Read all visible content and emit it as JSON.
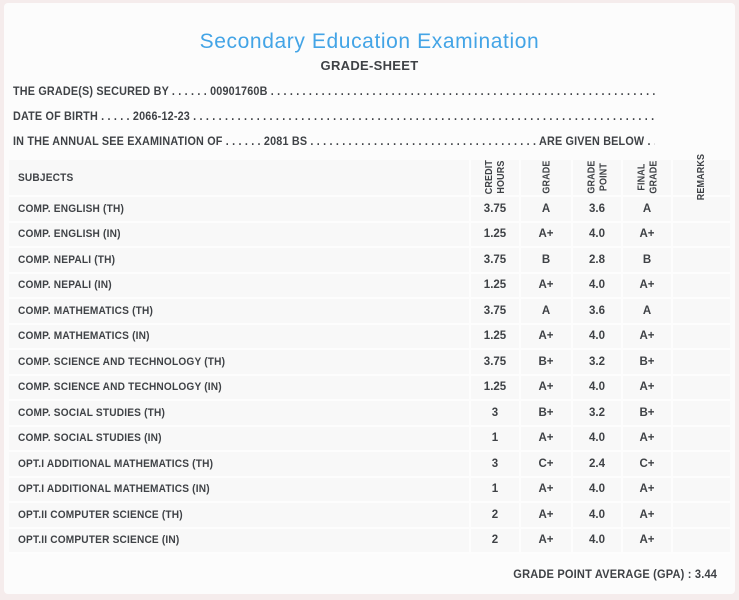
{
  "header": {
    "title": "Secondary Education Examination",
    "subtitle": "GRADE-SHEET"
  },
  "info": {
    "lines": [
      "THE GRADE(S) SECURED BY . . . . . . 00901760B . . . . . . . . . . . . . . . . . . . . . . . . . . . . . . . . . . . . . . . . . . . . . . . . . . . . . . . . . . . . . . . . . . . . . . . .",
      "DATE OF BIRTH . . . . . 2066-12-23 . . . . . . . . . . . . . . . . . . . . . . . . . . . . . . . . . . . . . . . . . . . . . . . . . . . . . . . . . . . . . . . . . . . . . . . . . . . . . . . .",
      "IN THE ANNUAL SEE EXAMINATION OF . . . . . . 2081 BS . . . . . . . . . . . . . . . . . . . . . . . . . . . . . . . . . . . . ARE GIVEN BELOW . . ."
    ]
  },
  "table": {
    "headers": {
      "subjects": "SUBJECTS",
      "credit_hours": "CREDIT\nHOURS",
      "grade": "GRADE",
      "grade_point": "GRADE\nPOINT",
      "final_grade": "FINAL\nGRADE",
      "remarks": "REMARKS"
    },
    "rows": [
      {
        "subject": "COMP. ENGLISH (TH)",
        "credit_hours": "3.75",
        "grade": "A",
        "grade_point": "3.6",
        "final_grade": "A",
        "remarks": ""
      },
      {
        "subject": "COMP. ENGLISH (IN)",
        "credit_hours": "1.25",
        "grade": "A+",
        "grade_point": "4.0",
        "final_grade": "A+",
        "remarks": ""
      },
      {
        "subject": "COMP. NEPALI (TH)",
        "credit_hours": "3.75",
        "grade": "B",
        "grade_point": "2.8",
        "final_grade": "B",
        "remarks": ""
      },
      {
        "subject": "COMP. NEPALI (IN)",
        "credit_hours": "1.25",
        "grade": "A+",
        "grade_point": "4.0",
        "final_grade": "A+",
        "remarks": ""
      },
      {
        "subject": "COMP. MATHEMATICS (TH)",
        "credit_hours": "3.75",
        "grade": "A",
        "grade_point": "3.6",
        "final_grade": "A",
        "remarks": ""
      },
      {
        "subject": "COMP. MATHEMATICS (IN)",
        "credit_hours": "1.25",
        "grade": "A+",
        "grade_point": "4.0",
        "final_grade": "A+",
        "remarks": ""
      },
      {
        "subject": "COMP. SCIENCE AND TECHNOLOGY (TH)",
        "credit_hours": "3.75",
        "grade": "B+",
        "grade_point": "3.2",
        "final_grade": "B+",
        "remarks": ""
      },
      {
        "subject": "COMP. SCIENCE AND TECHNOLOGY (IN)",
        "credit_hours": "1.25",
        "grade": "A+",
        "grade_point": "4.0",
        "final_grade": "A+",
        "remarks": ""
      },
      {
        "subject": "COMP. SOCIAL STUDIES (TH)",
        "credit_hours": "3",
        "grade": "B+",
        "grade_point": "3.2",
        "final_grade": "B+",
        "remarks": ""
      },
      {
        "subject": "COMP. SOCIAL STUDIES (IN)",
        "credit_hours": "1",
        "grade": "A+",
        "grade_point": "4.0",
        "final_grade": "A+",
        "remarks": ""
      },
      {
        "subject": "OPT.I ADDITIONAL MATHEMATICS (TH)",
        "credit_hours": "3",
        "grade": "C+",
        "grade_point": "2.4",
        "final_grade": "C+",
        "remarks": ""
      },
      {
        "subject": "OPT.I ADDITIONAL MATHEMATICS (IN)",
        "credit_hours": "1",
        "grade": "A+",
        "grade_point": "4.0",
        "final_grade": "A+",
        "remarks": ""
      },
      {
        "subject": "OPT.II COMPUTER SCIENCE (TH)",
        "credit_hours": "2",
        "grade": "A+",
        "grade_point": "4.0",
        "final_grade": "A+",
        "remarks": ""
      },
      {
        "subject": "OPT.II COMPUTER SCIENCE (IN)",
        "credit_hours": "2",
        "grade": "A+",
        "grade_point": "4.0",
        "final_grade": "A+",
        "remarks": ""
      }
    ]
  },
  "footer": {
    "gpa_text": "GRADE POINT AVERAGE (GPA) : 3.44"
  },
  "colors": {
    "accent_blue": "#43a4e6",
    "text": "#3f4246",
    "row_bg": "#f8f8f8",
    "card_bg": "#fcfcfc",
    "page_bg": "#f5ecec"
  }
}
